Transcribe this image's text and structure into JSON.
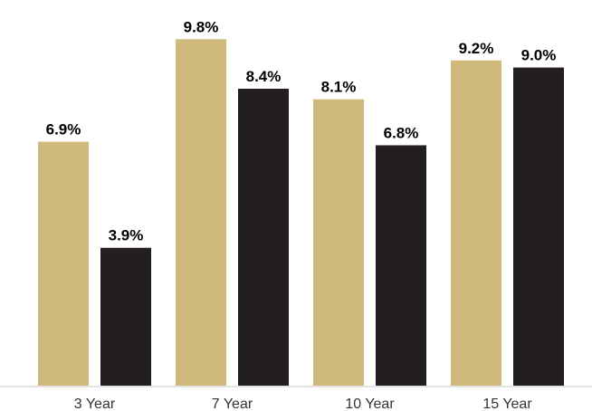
{
  "chart_data": {
    "type": "bar",
    "categories": [
      "3 Year",
      "7 Year",
      "10 Year",
      "15 Year"
    ],
    "series": [
      {
        "values": [
          6.9,
          9.8,
          8.1,
          9.2
        ],
        "labels": [
          "6.9%",
          "9.8%",
          "8.1%",
          "9.2%"
        ],
        "color": "#cfb97b"
      },
      {
        "values": [
          3.9,
          8.4,
          6.8,
          9.0
        ],
        "labels": [
          "3.9%",
          "8.4%",
          "6.8%",
          "9.0%"
        ],
        "color": "#231f20"
      }
    ],
    "ylim": [
      0,
      10.5
    ],
    "grid": false,
    "legend": "none",
    "baseline_color": "#d9d9d9",
    "title": "",
    "xlabel": "",
    "ylabel": ""
  }
}
